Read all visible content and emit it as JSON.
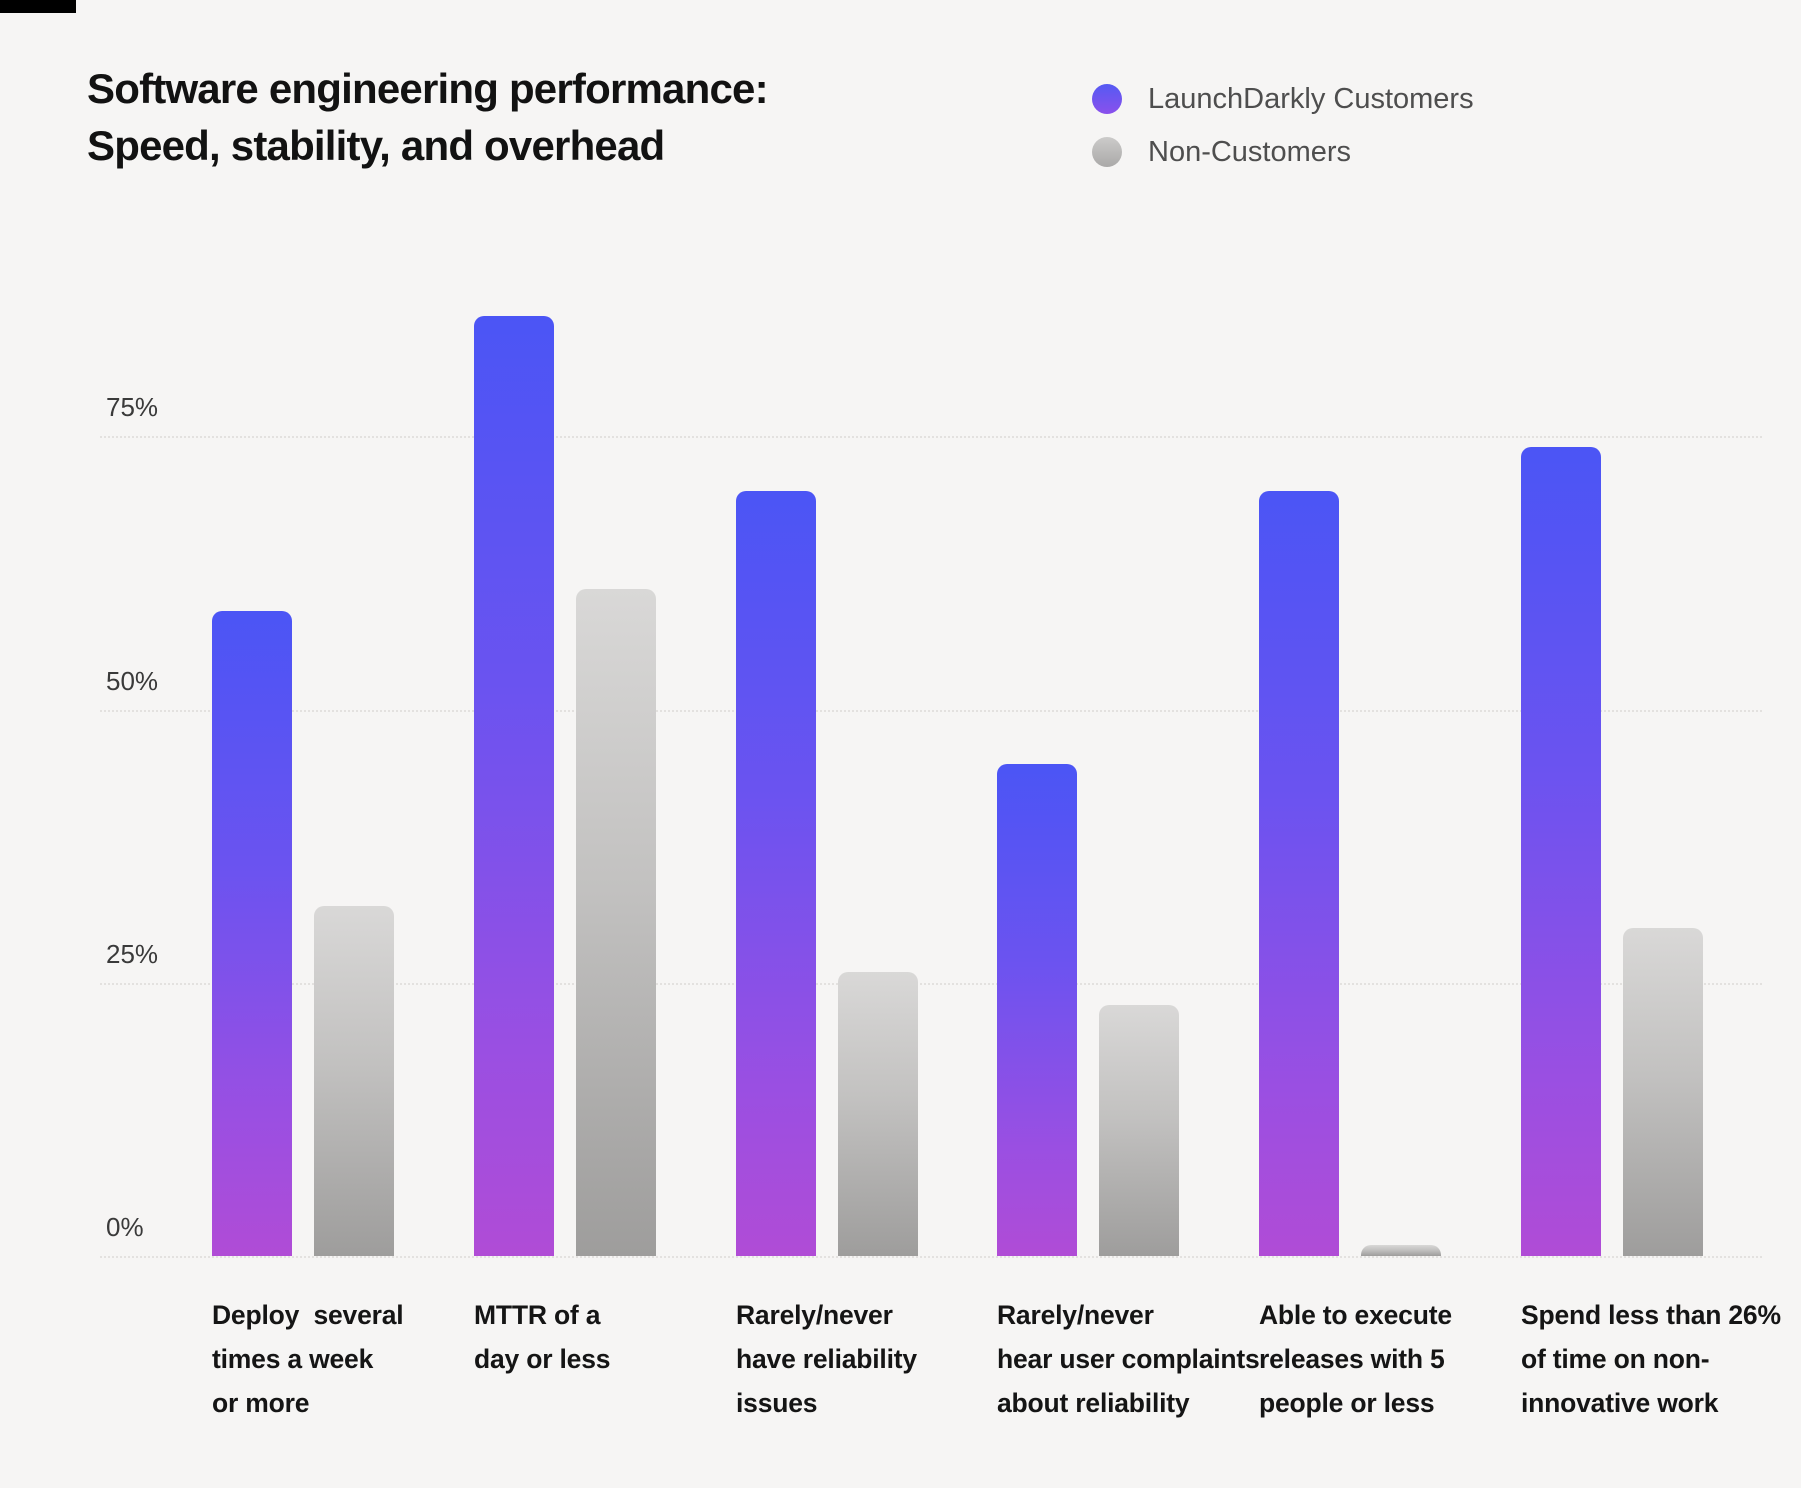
{
  "header": {
    "title_lines": [
      "Software engineering performance:",
      "Speed, stability, and overhead"
    ]
  },
  "colors": {
    "background": "#F6F5F4",
    "purple_top": "#4B55F5",
    "purple_bottom": "#B04CD6",
    "gray_top": "#D9D8D7",
    "gray_bottom": "#9E9D9C",
    "gridline": "#E3E1DF",
    "title_text": "#121212",
    "legend_text": "#4E4E4E",
    "tick_text": "#3A3A3A",
    "category_text": "#151515"
  },
  "chart_data": {
    "type": "bar",
    "title": "Software engineering performance: Speed, stability, and overhead",
    "unit": "%",
    "categories": [
      "Deploy several times a week or more",
      "MTTR of a day or less",
      "Rarely/never have reliability issues",
      "Rarely/never hear user complaints about reliability",
      "Able to execute releases with 5 people or less",
      "Spend less than 26% of time on non-innovative work"
    ],
    "category_lines": [
      [
        "Deploy  several",
        "times a week",
        "or more"
      ],
      [
        "MTTR of a",
        "day or less"
      ],
      [
        "Rarely/never",
        "have reliability",
        "issues"
      ],
      [
        "Rarely/never",
        "hear user complaints",
        "about reliability"
      ],
      [
        "Able to execute",
        "releases with 5",
        "people or less"
      ],
      [
        "Spend less than 26%",
        "of time on non-",
        "innovative work"
      ]
    ],
    "series": [
      {
        "name": "LaunchDarkly Customers",
        "color": "purple-gradient",
        "values": [
          59,
          86,
          70,
          45,
          70,
          74
        ]
      },
      {
        "name": "Non-Customers",
        "color": "gray-gradient",
        "values": [
          32,
          61,
          26,
          23,
          1,
          30
        ]
      }
    ],
    "y_ticks": [
      {
        "label": "75%",
        "value": 75
      },
      {
        "label": "50%",
        "value": 50
      },
      {
        "label": "25%",
        "value": 25
      },
      {
        "label": "0%",
        "value": 0
      }
    ],
    "ylim": [
      0,
      90
    ],
    "grid": "horizontal-dotted",
    "legend_position": "top-right"
  }
}
